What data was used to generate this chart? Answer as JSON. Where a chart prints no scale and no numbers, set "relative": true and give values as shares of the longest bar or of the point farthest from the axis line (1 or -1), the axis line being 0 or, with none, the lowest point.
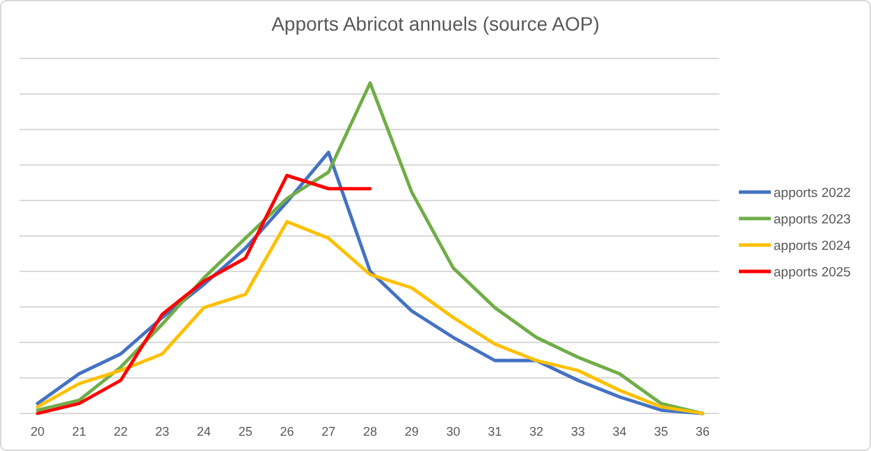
{
  "chart_data": {
    "type": "line",
    "title": "Apports Abricot annuels (source AOP)",
    "relative": true,
    "grid": "y",
    "legend": "right",
    "marker": "none",
    "categories": [
      "20",
      "21",
      "22",
      "23",
      "24",
      "25",
      "26",
      "27",
      "28",
      "29",
      "30",
      "31",
      "32",
      "33",
      "34",
      "35",
      "36"
    ],
    "series": [
      {
        "name": "apports 2022",
        "color": "#4472c4",
        "values": [
          0.03,
          0.12,
          0.18,
          0.29,
          0.39,
          0.5,
          0.64,
          0.79,
          0.43,
          0.31,
          0.23,
          0.16,
          0.16,
          0.1,
          0.05,
          0.01,
          0.0
        ]
      },
      {
        "name": "apports 2023",
        "color": "#70ad47",
        "values": [
          0.01,
          0.04,
          0.14,
          0.27,
          0.41,
          0.53,
          0.65,
          0.73,
          1,
          0.67,
          0.44,
          0.32,
          0.23,
          0.17,
          0.12,
          0.03,
          0.0
        ]
      },
      {
        "name": "apports 2024",
        "color": "#ffc000",
        "values": [
          0.02,
          0.09,
          0.13,
          0.18,
          0.32,
          0.36,
          0.58,
          0.53,
          0.42,
          0.38,
          0.29,
          0.21,
          0.16,
          0.13,
          0.07,
          0.02,
          0.0
        ]
      },
      {
        "name": "apports 2025",
        "color": "#ff0000",
        "values": [
          0,
          0.03,
          0.1,
          0.3,
          0.4,
          0.47,
          0.72,
          0.68,
          0.68,
          null,
          null,
          null,
          null,
          null,
          null,
          null,
          null
        ]
      }
    ]
  }
}
